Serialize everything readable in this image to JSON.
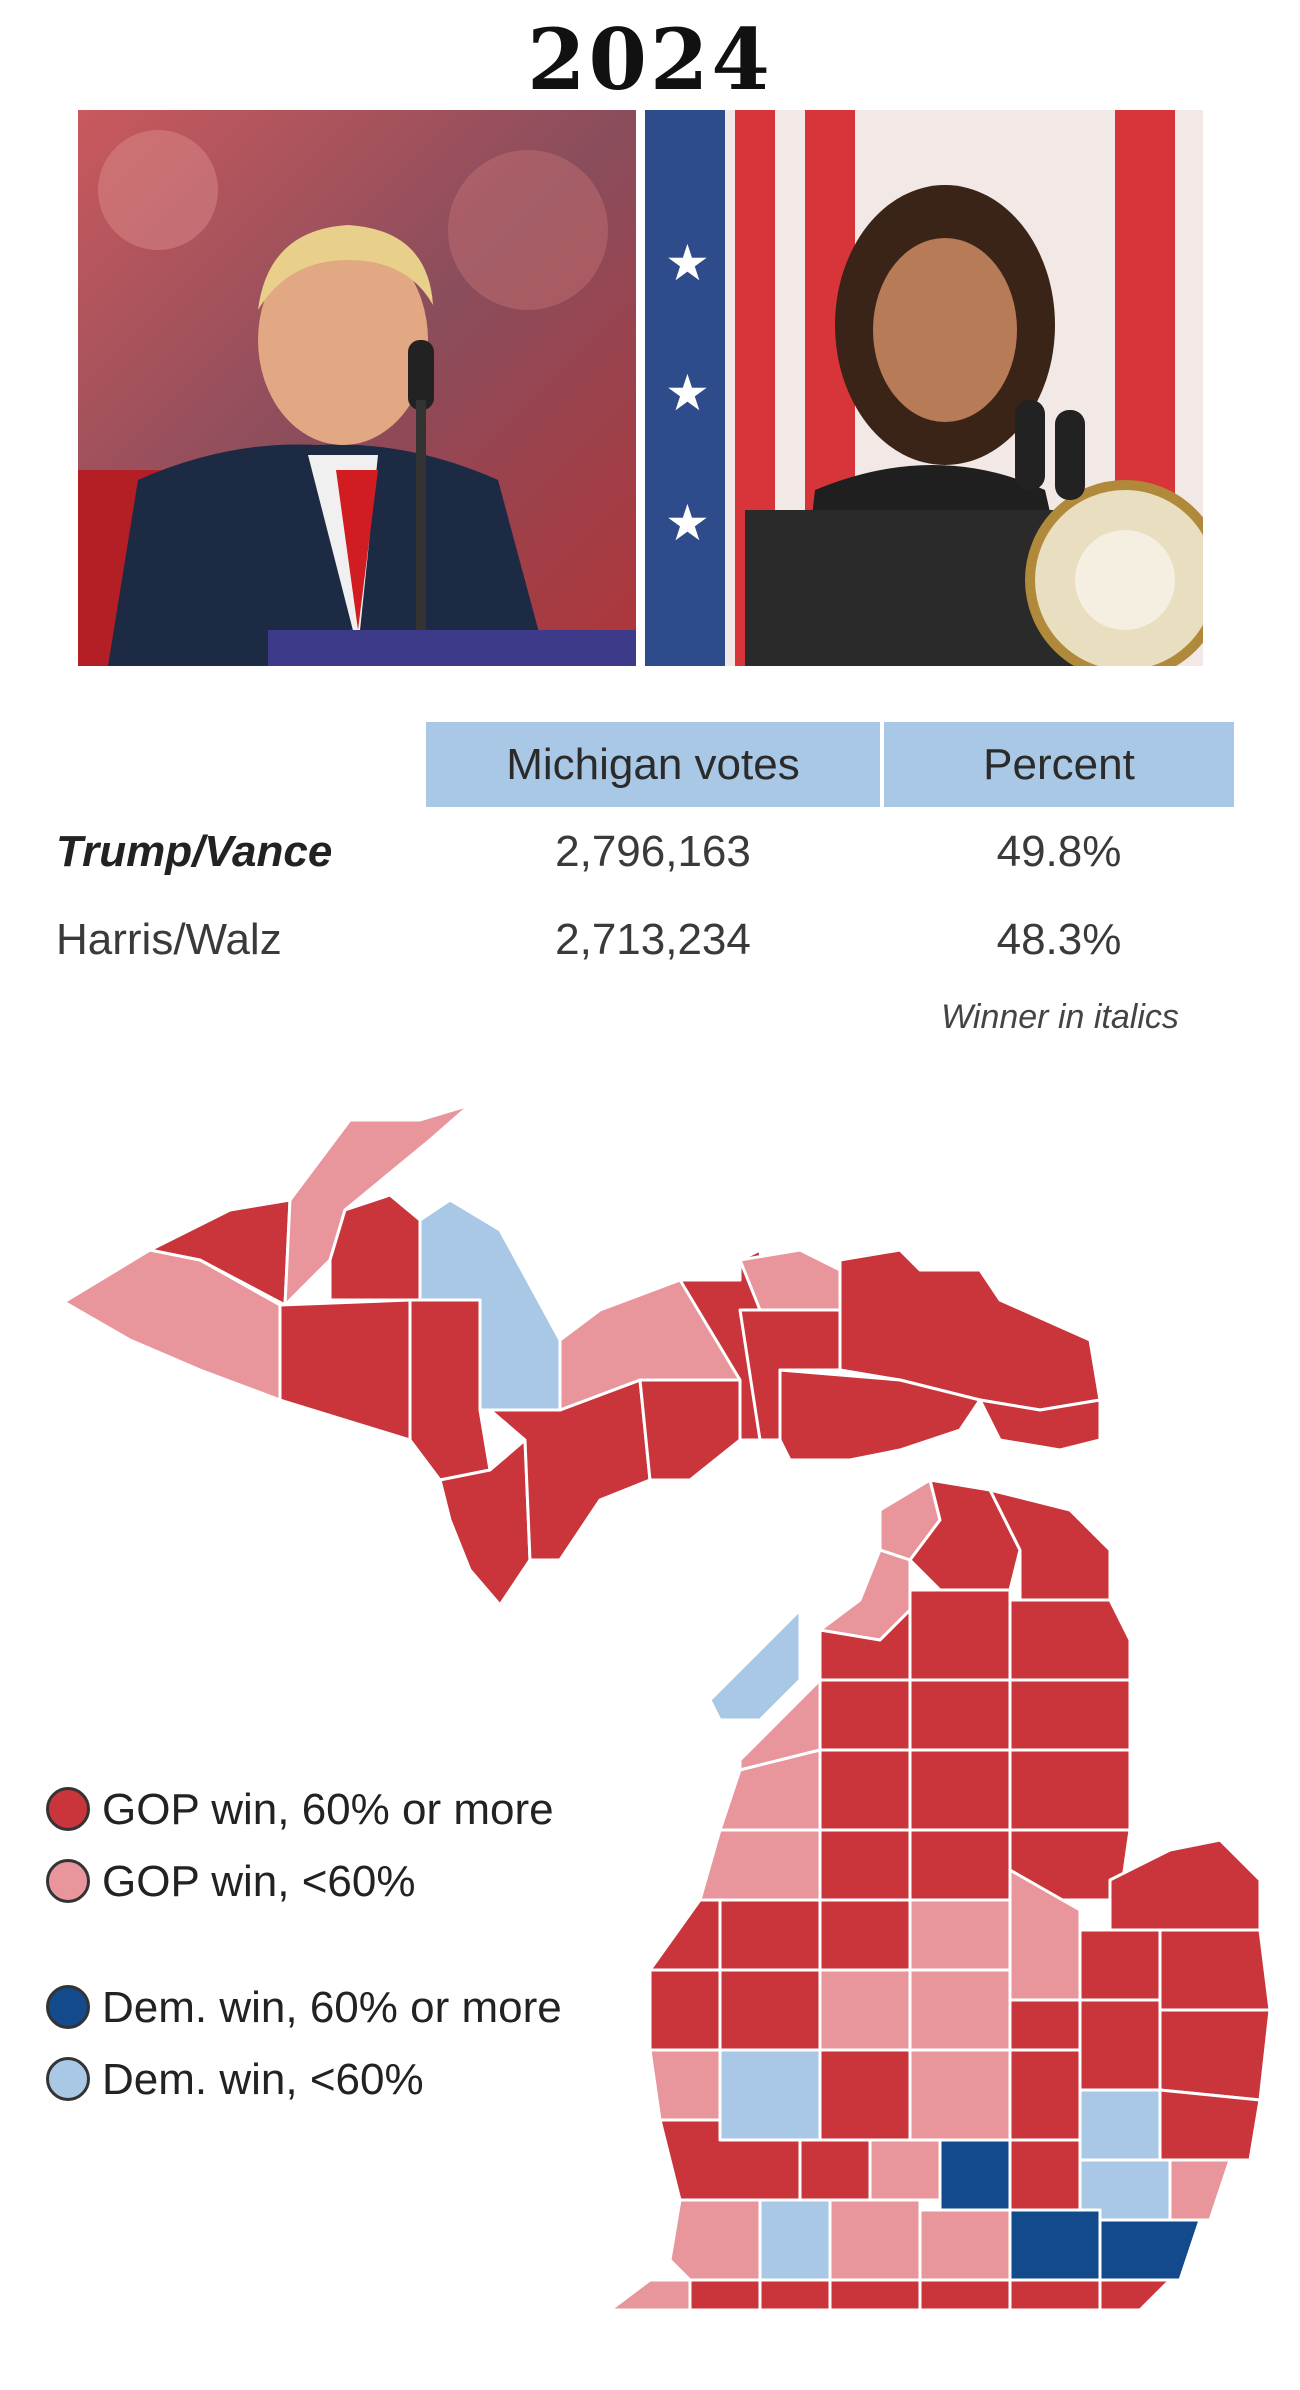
{
  "header": {
    "year": "2024"
  },
  "photos": {
    "left": {
      "icon": "candidate-photo-trump"
    },
    "right": {
      "icon": "candidate-photo-harris"
    }
  },
  "results": {
    "col_votes": "Michigan votes",
    "col_percent": "Percent",
    "rows": [
      {
        "candidate": "Trump/Vance",
        "votes": "2,796,163",
        "percent": "49.8%",
        "winner": true
      },
      {
        "candidate": "Harris/Walz",
        "votes": "2,713,234",
        "percent": "48.3%",
        "winner": false
      }
    ],
    "note": "Winner in italics"
  },
  "legend": {
    "items": [
      {
        "label": "GOP win, 60% or more",
        "color": "#c9353b"
      },
      {
        "label": "GOP win, <60%",
        "color": "#e8959b"
      },
      {
        "label": "Dem. win, 60% or more",
        "color": "#124a8c"
      },
      {
        "label": "Dem. win, <60%",
        "color": "#a9c8e5"
      }
    ]
  },
  "colors": {
    "gop_strong": "#c9353b",
    "gop_lean": "#e8959b",
    "dem_strong": "#124a8c",
    "dem_lean": "#a9c8e5"
  }
}
